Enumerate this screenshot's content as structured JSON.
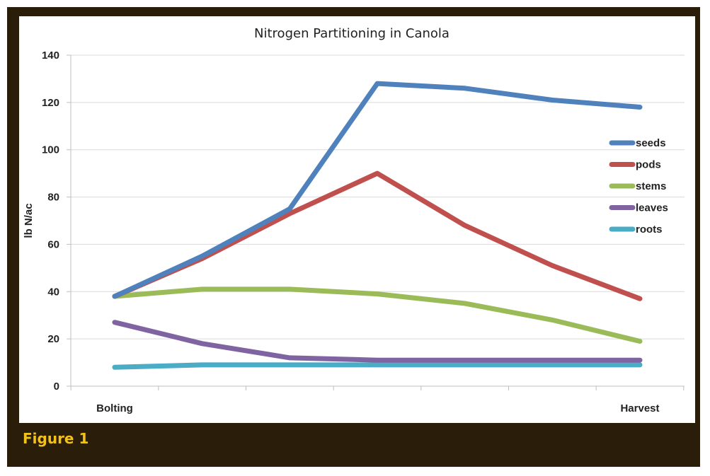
{
  "figure": {
    "caption": "Figure 1"
  },
  "chart_data": {
    "type": "line",
    "title": "Nitrogen Partitioning in Canola",
    "ylabel": "lb N/ac",
    "xlabel": "",
    "ylim": [
      0,
      140
    ],
    "y_ticks": [
      0,
      20,
      40,
      60,
      80,
      100,
      120,
      140
    ],
    "x_labels": [
      "Bolting",
      "",
      "",
      "",
      "",
      "",
      "Harvest"
    ],
    "grid": "horizontal",
    "legend_position": "right",
    "series": [
      {
        "name": "seeds",
        "color": "#4f81bd",
        "values": [
          38,
          55,
          75,
          128,
          126,
          121,
          118
        ]
      },
      {
        "name": "pods",
        "color": "#c0504d",
        "values": [
          38,
          54,
          73,
          90,
          68,
          51,
          37
        ]
      },
      {
        "name": "stems",
        "color": "#9bbb59",
        "values": [
          38,
          41,
          41,
          39,
          35,
          28,
          19
        ]
      },
      {
        "name": "leaves",
        "color": "#8064a2",
        "values": [
          27,
          18,
          12,
          11,
          11,
          11,
          11
        ]
      },
      {
        "name": "roots",
        "color": "#4bacc6",
        "values": [
          8,
          9,
          9,
          9,
          9,
          9,
          9
        ]
      }
    ]
  }
}
